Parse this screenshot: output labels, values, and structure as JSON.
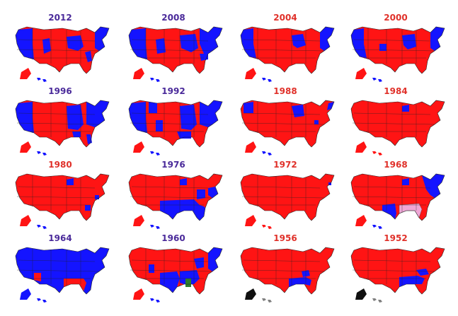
{
  "colors": {
    "dem": "#1414ff",
    "rep": "#ff1414",
    "dem_label": "#4a2a9a",
    "rep_label": "#e0312a",
    "third_green": "#2e7d2e",
    "third_pink": "#f0a6d6",
    "gray": "#7f7f7f",
    "black": "#101010"
  },
  "elections": [
    {
      "year": "2012",
      "winner": "dem"
    },
    {
      "year": "2008",
      "winner": "dem"
    },
    {
      "year": "2004",
      "winner": "rep"
    },
    {
      "year": "2000",
      "winner": "rep"
    },
    {
      "year": "1996",
      "winner": "dem"
    },
    {
      "year": "1992",
      "winner": "dem"
    },
    {
      "year": "1988",
      "winner": "rep"
    },
    {
      "year": "1984",
      "winner": "rep"
    },
    {
      "year": "1980",
      "winner": "rep"
    },
    {
      "year": "1976",
      "winner": "dem"
    },
    {
      "year": "1972",
      "winner": "rep"
    },
    {
      "year": "1968",
      "winner": "rep"
    },
    {
      "year": "1964",
      "winner": "dem"
    },
    {
      "year": "1960",
      "winner": "dem"
    },
    {
      "year": "1956",
      "winner": "rep"
    },
    {
      "year": "1952",
      "winner": "rep"
    }
  ]
}
